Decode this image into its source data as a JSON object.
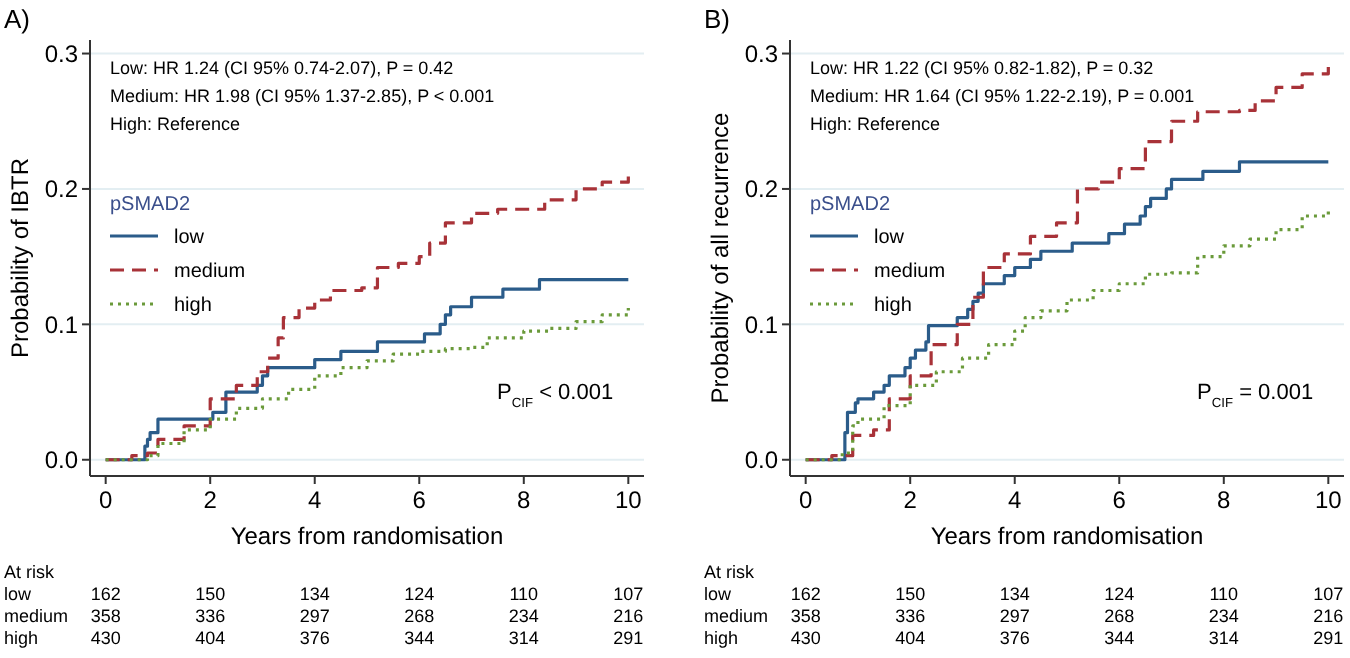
{
  "chart_data": [
    {
      "type": "step",
      "title": "A)",
      "xlabel": "Years from randomisation",
      "ylabel": "Probability of IBTR",
      "legend_title": "pSMAD2",
      "legend": "left",
      "grid": "y",
      "xlim": [
        -0.3,
        10.3
      ],
      "ylim": [
        -0.012,
        0.31
      ],
      "xticks": [
        0,
        2,
        4,
        6,
        8,
        10
      ],
      "yticks": [
        {
          "value": 0,
          "label": "0.0"
        },
        0.1,
        0.2,
        0.3
      ],
      "series": [
        {
          "name": "low",
          "color": "#2b5c8a",
          "line_style": "solid",
          "x": [
            0,
            0.75,
            0.8,
            0.85,
            1.0,
            2.05,
            2.3,
            2.9,
            3.0,
            3.1,
            4.0,
            4.5,
            5.2,
            6.1,
            6.4,
            6.5,
            6.6,
            7.0,
            7.6,
            8.3,
            10
          ],
          "values": [
            0,
            0.01,
            0.015,
            0.02,
            0.03,
            0.035,
            0.05,
            0.055,
            0.062,
            0.068,
            0.074,
            0.08,
            0.087,
            0.093,
            0.1,
            0.107,
            0.113,
            0.12,
            0.126,
            0.133,
            0.133
          ]
        },
        {
          "name": "medium",
          "color": "#a83238",
          "line_style": "dashed",
          "x": [
            0,
            0.5,
            0.8,
            1.0,
            1.5,
            2.0,
            2.5,
            2.9,
            3.1,
            3.3,
            3.4,
            3.7,
            4.0,
            4.3,
            4.9,
            5.2,
            5.6,
            6.0,
            6.2,
            6.5,
            7.0,
            7.5,
            8.0,
            8.4,
            9.0,
            9.5,
            10
          ],
          "values": [
            0,
            0.003,
            0.005,
            0.015,
            0.025,
            0.045,
            0.055,
            0.065,
            0.075,
            0.09,
            0.105,
            0.112,
            0.118,
            0.125,
            0.127,
            0.142,
            0.145,
            0.15,
            0.16,
            0.175,
            0.182,
            0.185,
            0.185,
            0.192,
            0.2,
            0.205,
            0.21
          ]
        },
        {
          "name": "high",
          "color": "#6a9a3a",
          "line_style": "dotted",
          "x": [
            0,
            0.8,
            1.0,
            1.5,
            2.0,
            2.5,
            3.0,
            3.5,
            4.0,
            4.5,
            5.0,
            5.5,
            6.0,
            6.5,
            7.0,
            7.3,
            8.0,
            8.5,
            9.0,
            9.5,
            10
          ],
          "values": [
            0,
            0.003,
            0.012,
            0.022,
            0.03,
            0.038,
            0.045,
            0.052,
            0.062,
            0.068,
            0.073,
            0.078,
            0.08,
            0.082,
            0.083,
            0.09,
            0.095,
            0.097,
            0.102,
            0.107,
            0.112
          ]
        }
      ],
      "annotations": [
        "Low: HR 1.24 (CI 95% 0.74-2.07), P = 0.42",
        "Medium: HR 1.98 (CI 95% 1.37-2.85), P < 0.001",
        "High: Reference",
        "P$_{CIF}$ < 0.001",
        "At risk",
        "low",
        "162",
        "150",
        "134",
        "124",
        "110",
        "107",
        "medium",
        "358",
        "336",
        "297",
        "268",
        "234",
        "216",
        "high",
        "430",
        "404",
        "376",
        "344",
        "314",
        "291"
      ]
    },
    {
      "type": "step",
      "title": "B)",
      "xlabel": "Years from randomisation",
      "ylabel": "Probability of all recurrence",
      "legend_title": "pSMAD2",
      "legend": "left",
      "grid": "y",
      "xlim": [
        -0.3,
        10.3
      ],
      "ylim": [
        -0.012,
        0.31
      ],
      "xticks": [
        0,
        2,
        4,
        6,
        8,
        10
      ],
      "yticks": [
        {
          "value": 0,
          "label": "0.0"
        },
        0.1,
        0.2,
        0.3
      ],
      "series": [
        {
          "name": "low",
          "color": "#2b5c8a",
          "line_style": "solid",
          "x": [
            0,
            0.75,
            0.8,
            0.95,
            1.0,
            1.3,
            1.5,
            1.6,
            1.9,
            2.0,
            2.1,
            2.3,
            2.35,
            2.9,
            3.1,
            3.2,
            3.3,
            3.4,
            3.8,
            4.0,
            4.3,
            4.5,
            5.1,
            5.8,
            6.1,
            6.4,
            6.5,
            6.6,
            6.9,
            7.0,
            7.6,
            8.3,
            10
          ],
          "values": [
            0,
            0.02,
            0.035,
            0.042,
            0.045,
            0.05,
            0.055,
            0.062,
            0.068,
            0.075,
            0.081,
            0.087,
            0.099,
            0.105,
            0.111,
            0.117,
            0.123,
            0.13,
            0.136,
            0.142,
            0.148,
            0.154,
            0.16,
            0.167,
            0.174,
            0.18,
            0.187,
            0.193,
            0.2,
            0.207,
            0.213,
            0.22,
            0.22
          ]
        },
        {
          "name": "medium",
          "color": "#a83238",
          "line_style": "dashed",
          "x": [
            0,
            0.5,
            0.9,
            1.3,
            1.6,
            2.0,
            2.4,
            2.9,
            3.2,
            3.4,
            3.8,
            4.3,
            4.8,
            5.2,
            5.6,
            6.0,
            6.5,
            7.0,
            7.5,
            8.3,
            8.6,
            9.0,
            9.5,
            10
          ],
          "values": [
            0,
            0.003,
            0.018,
            0.022,
            0.045,
            0.062,
            0.085,
            0.1,
            0.12,
            0.142,
            0.152,
            0.165,
            0.175,
            0.2,
            0.205,
            0.215,
            0.235,
            0.25,
            0.257,
            0.258,
            0.265,
            0.275,
            0.285,
            0.29
          ]
        },
        {
          "name": "high",
          "color": "#6a9a3a",
          "line_style": "dotted",
          "x": [
            0,
            0.7,
            0.9,
            1.0,
            1.5,
            2.0,
            2.5,
            3.0,
            3.5,
            4.0,
            4.2,
            4.5,
            5.0,
            5.5,
            6.0,
            6.5,
            7.0,
            7.5,
            8.0,
            8.5,
            9.0,
            9.5,
            10
          ],
          "values": [
            0,
            0.005,
            0.025,
            0.03,
            0.04,
            0.055,
            0.065,
            0.075,
            0.085,
            0.095,
            0.105,
            0.11,
            0.118,
            0.125,
            0.13,
            0.137,
            0.138,
            0.15,
            0.158,
            0.163,
            0.17,
            0.18,
            0.185
          ]
        }
      ],
      "annotations": [
        "Low: HR 1.22 (CI 95% 0.82-1.82), P = 0.32",
        "Medium: HR 1.64 (CI 95% 1.22-2.19), P = 0.001",
        "High: Reference",
        "P$_{CIF}$ = 0.001",
        "At risk",
        "low",
        "162",
        "150",
        "134",
        "124",
        "110",
        "107",
        "medium",
        "358",
        "336",
        "297",
        "268",
        "234",
        "216",
        "high",
        "430",
        "404",
        "376",
        "344",
        "314",
        "291"
      ]
    }
  ]
}
